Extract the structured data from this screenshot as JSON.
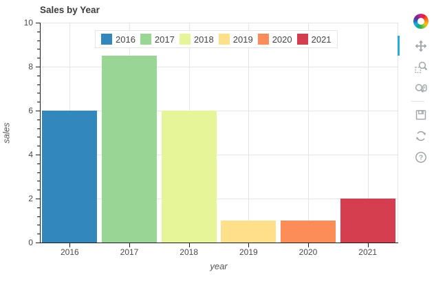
{
  "chart_data": {
    "type": "bar",
    "title": "Sales by Year",
    "xlabel": "year",
    "ylabel": "sales",
    "categories": [
      "2016",
      "2017",
      "2018",
      "2019",
      "2020",
      "2021"
    ],
    "values": [
      6,
      8.5,
      6,
      1,
      1,
      2
    ],
    "bar_colors": [
      "#3288bd",
      "#99d594",
      "#e6f598",
      "#fee08b",
      "#fc8d59",
      "#d53e4f"
    ],
    "ylim": [
      0,
      10
    ],
    "yticks": [
      0,
      2,
      4,
      6,
      8,
      10
    ],
    "minor_ticks_per_interval": 4,
    "grid": "on",
    "legend": {
      "position": "inside-top",
      "orientation": "horizontal",
      "entries": [
        "2016",
        "2017",
        "2018",
        "2019",
        "2020",
        "2021"
      ]
    }
  },
  "toolbar": {
    "logo_icon": "bokeh-logo",
    "active_tool": "pan",
    "accent_color": "#26aae1",
    "icon_color": "#a1a6a9",
    "tools": [
      {
        "icon": "pan-icon",
        "active": true
      },
      {
        "icon": "box-zoom-icon",
        "active": false
      },
      {
        "icon": "wheel-zoom-icon",
        "active": false
      },
      {
        "icon": "save-icon",
        "active": false
      },
      {
        "icon": "reset-icon",
        "active": false
      },
      {
        "icon": "help-icon",
        "active": false
      }
    ]
  },
  "styles": {
    "grid_color": "#e5e5e5",
    "axis_color": "#1a1a1a",
    "tick_text_color": "#4a4a4a",
    "title_color": "#3c3c3c"
  }
}
